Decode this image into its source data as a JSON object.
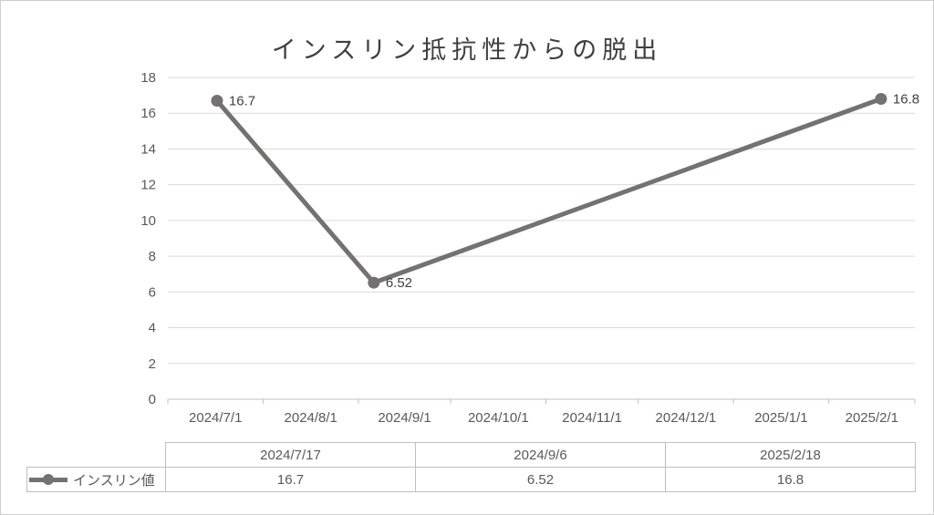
{
  "chart_data": {
    "type": "line",
    "title": "インスリン抵抗性からの脱出",
    "series": [
      {
        "name": "インスリン値",
        "color": "#767171",
        "points": [
          {
            "date": "2024-07-17",
            "value": 16.7,
            "label": "16.7"
          },
          {
            "date": "2024-09-06",
            "value": 6.52,
            "label": "6.52"
          },
          {
            "date": "2025-02-18",
            "value": 16.8,
            "label": "16.8"
          }
        ]
      }
    ],
    "x_axis": {
      "type": "date",
      "start": "2024-07-01",
      "end": "2025-03-01",
      "tick_unit": "month",
      "tick_labels": [
        "2024/7/1",
        "2024/8/1",
        "2024/9/1",
        "2024/10/1",
        "2024/11/1",
        "2024/12/1",
        "2025/1/1",
        "2025/2/1"
      ]
    },
    "y_axis": {
      "min": 0,
      "max": 18,
      "step": 2,
      "tick_labels": [
        "0",
        "2",
        "4",
        "6",
        "8",
        "10",
        "12",
        "14",
        "16",
        "18"
      ]
    },
    "grid": "horizontal",
    "legend_position": "bottom-table-left",
    "table": {
      "dates": [
        "2024/7/17",
        "2024/9/6",
        "2025/2/18"
      ],
      "values": [
        "16.7",
        "6.52",
        "16.8"
      ]
    }
  },
  "colors": {
    "series": "#767171",
    "gridline": "#d9d9d9",
    "axis": "#bfbfbf",
    "tick_text": "#595959",
    "data_label": "#404040",
    "table_border": "#bfbfbf",
    "frame_border": "#d0cece"
  }
}
